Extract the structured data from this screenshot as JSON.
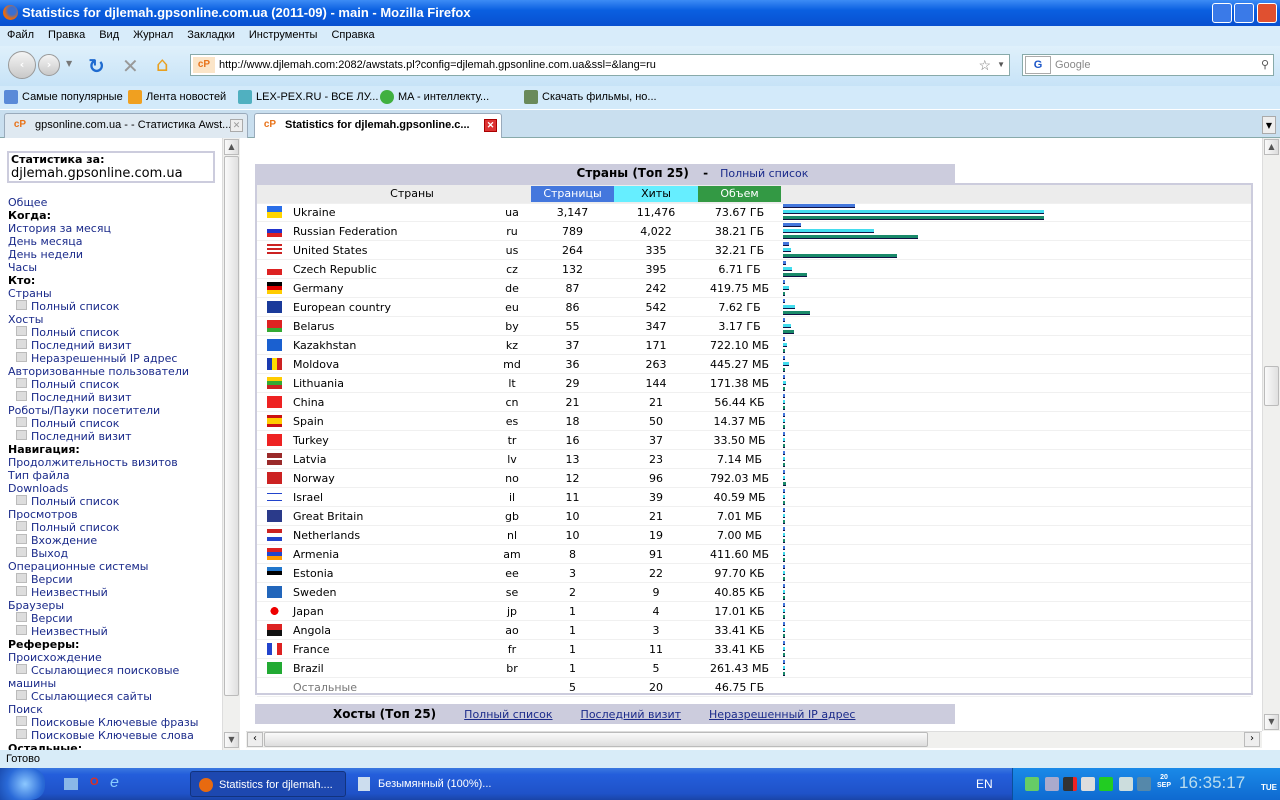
{
  "window": {
    "title": "Statistics for djlemah.gpsonline.com.ua (2011-09) - main - Mozilla Firefox"
  },
  "menu": [
    "Файл",
    "Правка",
    "Вид",
    "Журнал",
    "Закладки",
    "Инструменты",
    "Справка"
  ],
  "nav": {
    "url": "http://www.djlemah.com:2082/awstats.pl?config=djlemah.gpsonline.com.ua&ssl=&lang=ru",
    "search_placeholder": "Google"
  },
  "bookmarks": [
    "Самые популярные",
    "Лента новостей",
    "LEX-PEX.RU - ВСЕ ЛУ...",
    "MA - интеллекту...",
    "Скачать фильмы, но..."
  ],
  "tabs": [
    {
      "label": "gpsonline.com.ua - - Статистика Awst...",
      "active": false
    },
    {
      "label": "Statistics for djlemah.gpsonline.c...",
      "active": true
    }
  ],
  "sidebar": {
    "stat_label": "Статистика за:",
    "domain": "djlemah.gpsonline.com.ua",
    "items": [
      {
        "t": "Общее",
        "k": "it"
      },
      {
        "t": "Когда:",
        "k": "hd"
      },
      {
        "t": "История за месяц",
        "k": "it"
      },
      {
        "t": "День месяца",
        "k": "it"
      },
      {
        "t": "День недели",
        "k": "it"
      },
      {
        "t": "Часы",
        "k": "it"
      },
      {
        "t": "Кто:",
        "k": "hd"
      },
      {
        "t": "Страны",
        "k": "it"
      },
      {
        "t": "Полный список",
        "k": "sub"
      },
      {
        "t": "Хосты",
        "k": "it"
      },
      {
        "t": "Полный список",
        "k": "sub"
      },
      {
        "t": "Последний визит",
        "k": "sub"
      },
      {
        "t": "Неразрешенный IP адрес",
        "k": "sub"
      },
      {
        "t": "Авторизованные пользователи",
        "k": "it"
      },
      {
        "t": "Полный список",
        "k": "sub"
      },
      {
        "t": "Последний визит",
        "k": "sub"
      },
      {
        "t": "Роботы/Пауки посетители",
        "k": "it"
      },
      {
        "t": "Полный список",
        "k": "sub"
      },
      {
        "t": "Последний визит",
        "k": "sub"
      },
      {
        "t": "Навигация:",
        "k": "hd"
      },
      {
        "t": "Продолжительность визитов",
        "k": "it"
      },
      {
        "t": "Тип файла",
        "k": "it"
      },
      {
        "t": "Downloads",
        "k": "it"
      },
      {
        "t": "Полный список",
        "k": "sub"
      },
      {
        "t": "Просмотров",
        "k": "it"
      },
      {
        "t": "Полный список",
        "k": "sub"
      },
      {
        "t": "Вхождение",
        "k": "sub"
      },
      {
        "t": "Выход",
        "k": "sub"
      },
      {
        "t": "Операционные системы",
        "k": "it"
      },
      {
        "t": "Версии",
        "k": "sub"
      },
      {
        "t": "Неизвестный",
        "k": "sub"
      },
      {
        "t": "Браузеры",
        "k": "it"
      },
      {
        "t": "Версии",
        "k": "sub"
      },
      {
        "t": "Неизвестный",
        "k": "sub"
      },
      {
        "t": "Рефереры:",
        "k": "hd"
      },
      {
        "t": "Происхождение",
        "k": "it"
      },
      {
        "t": "Ссылающиеся поисковые",
        "k": "sub"
      },
      {
        "t": "машины",
        "k": "it"
      },
      {
        "t": "Ссылающиеся сайты",
        "k": "sub"
      },
      {
        "t": "Поиск",
        "k": "it"
      },
      {
        "t": "Поисковые Ключевые фразы",
        "k": "sub"
      },
      {
        "t": "Поисковые Ключевые слова",
        "k": "sub"
      },
      {
        "t": "Остальные:",
        "k": "hd"
      }
    ]
  },
  "countries": {
    "title": "Страны (Топ 25)",
    "sep": "-",
    "full_list": "Полный список",
    "headers": {
      "country": "Страны",
      "pages": "Страницы",
      "hits": "Хиты",
      "bandwidth": "Объем"
    },
    "colors": {
      "pages": "#4477dd",
      "hits": "#66eeff",
      "bandwidth": "#339944"
    },
    "rows": [
      [
        "Ukraine",
        "ua",
        "3,147",
        "11,476",
        "73.67 ГБ"
      ],
      [
        "Russian Federation",
        "ru",
        "789",
        "4,022",
        "38.21 ГБ"
      ],
      [
        "United States",
        "us",
        "264",
        "335",
        "32.21 ГБ"
      ],
      [
        "Czech Republic",
        "cz",
        "132",
        "395",
        "6.71 ГБ"
      ],
      [
        "Germany",
        "de",
        "87",
        "242",
        "419.75 МБ"
      ],
      [
        "European country",
        "eu",
        "86",
        "542",
        "7.62 ГБ"
      ],
      [
        "Belarus",
        "by",
        "55",
        "347",
        "3.17 ГБ"
      ],
      [
        "Kazakhstan",
        "kz",
        "37",
        "171",
        "722.10 МБ"
      ],
      [
        "Moldova",
        "md",
        "36",
        "263",
        "445.27 МБ"
      ],
      [
        "Lithuania",
        "lt",
        "29",
        "144",
        "171.38 МБ"
      ],
      [
        "China",
        "cn",
        "21",
        "21",
        "56.44 КБ"
      ],
      [
        "Spain",
        "es",
        "18",
        "50",
        "14.37 МБ"
      ],
      [
        "Turkey",
        "tr",
        "16",
        "37",
        "33.50 МБ"
      ],
      [
        "Latvia",
        "lv",
        "13",
        "23",
        "7.14 МБ"
      ],
      [
        "Norway",
        "no",
        "12",
        "96",
        "792.03 МБ"
      ],
      [
        "Israel",
        "il",
        "11",
        "39",
        "40.59 МБ"
      ],
      [
        "Great Britain",
        "gb",
        "10",
        "21",
        "7.01 МБ"
      ],
      [
        "Netherlands",
        "nl",
        "10",
        "19",
        "7.00 МБ"
      ],
      [
        "Armenia",
        "am",
        "8",
        "91",
        "411.60 МБ"
      ],
      [
        "Estonia",
        "ee",
        "3",
        "22",
        "97.70 КБ"
      ],
      [
        "Sweden",
        "se",
        "2",
        "9",
        "40.85 КБ"
      ],
      [
        "Japan",
        "jp",
        "1",
        "4",
        "17.01 КБ"
      ],
      [
        "Angola",
        "ao",
        "1",
        "3",
        "33.41 КБ"
      ],
      [
        "France",
        "fr",
        "1",
        "11",
        "33.41 КБ"
      ],
      [
        "Brazil",
        "br",
        "1",
        "5",
        "261.43 МБ"
      ]
    ],
    "other": {
      "label": "Остальные",
      "pages": "5",
      "hits": "20",
      "bandwidth": "46.75 ГБ"
    }
  },
  "hosts": {
    "title": "Хосты (Топ 25)",
    "links": [
      "Полный список",
      "Последний визит",
      "Неразрешенный IP адрес"
    ]
  },
  "status": "Готово",
  "taskbar": {
    "items": [
      "Statistics for djlemah....",
      "Безымянный (100%)..."
    ],
    "lang": "EN",
    "date_day": "20",
    "date_month": "SEP",
    "time": "16:35:17",
    "weekday": "TUE"
  }
}
